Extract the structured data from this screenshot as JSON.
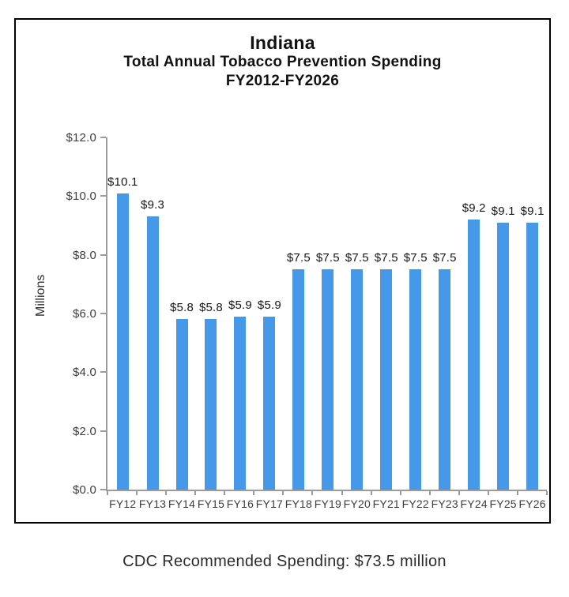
{
  "chart_data": {
    "type": "bar",
    "title": "Indiana",
    "subtitle_line1": "Total Annual Tobacco Prevention Spending",
    "subtitle_line2": "FY2012-FY2026",
    "ylabel": "Millions",
    "xlabel": "",
    "categories": [
      "FY12",
      "FY13",
      "FY14",
      "FY15",
      "FY16",
      "FY17",
      "FY18",
      "FY19",
      "FY20",
      "FY21",
      "FY22",
      "FY23",
      "FY24",
      "FY25",
      "FY26"
    ],
    "values": [
      10.1,
      9.3,
      5.8,
      5.8,
      5.9,
      5.9,
      7.5,
      7.5,
      7.5,
      7.5,
      7.5,
      7.5,
      9.2,
      9.1,
      9.1
    ],
    "bar_labels": [
      "$10.1",
      "$9.3",
      "$5.8",
      "$5.8",
      "$5.9",
      "$5.9",
      "$7.5",
      "$7.5",
      "$7.5",
      "$7.5",
      "$7.5",
      "$7.5",
      "$9.2",
      "$9.1",
      "$9.1"
    ],
    "y_ticks": [
      "$12.0",
      "$10.0",
      "$8.0",
      "$6.0",
      "$4.0",
      "$2.0",
      "$0.0"
    ],
    "ylim": [
      0,
      12
    ],
    "grid": false,
    "legend": "none",
    "bar_color": "#4599E8"
  },
  "caption": "CDC Recommended Spending: $73.5 million",
  "colors": {
    "bar": "#4599E8",
    "axis": "#9b9b9b",
    "frame_border": "#000000",
    "title_text": "#111111",
    "tick_text": "#3d3d3d",
    "caption_text": "#2b2b2b"
  }
}
